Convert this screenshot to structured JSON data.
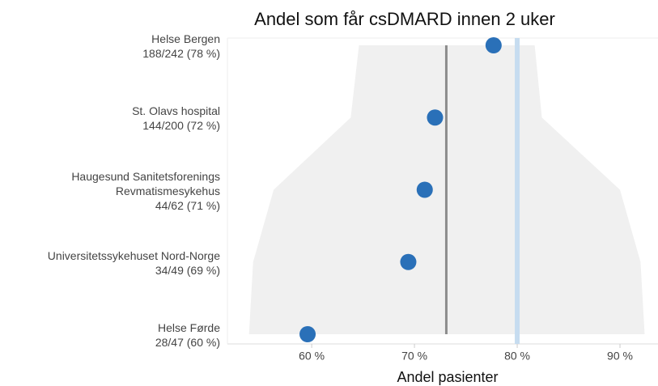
{
  "chart_data": {
    "type": "dot",
    "title": "Andel som får csDMARD innen 2 uker",
    "x_label": "Andel pasienter",
    "categories": [
      "Helse Bergen",
      "St. Olavs hospital",
      "Haugesund Sanitetsforenings Revmatismesykehus",
      "Universitetssykehuset Nord-Norge",
      "Helse Førde"
    ],
    "values": [
      77.7,
      72.0,
      71.0,
      69.4,
      59.6
    ],
    "value_labels": [
      "188/242 (78 %)",
      "144/200 (72 %)",
      "44/62 (71 %)",
      "34/49 (69 %)",
      "28/47 (60 %)"
    ],
    "color": "#2a70b8",
    "band_lower": [
      64.6,
      63.8,
      56.3,
      54.3,
      53.9
    ],
    "band_upper": [
      81.7,
      82.4,
      90.0,
      92.0,
      92.4
    ],
    "band_color": "#f0f0f0",
    "mean": 73.1,
    "mean_color": "#8c8c8c",
    "target": 80,
    "target_color": "#c6dcf0",
    "xlim": [
      51.8,
      93.7
    ],
    "xticks": [
      {
        "value": 60,
        "label": "60 %"
      },
      {
        "value": 70,
        "label": "70 %"
      },
      {
        "value": 80,
        "label": "80 %"
      },
      {
        "value": 90,
        "label": "90 %"
      }
    ]
  }
}
